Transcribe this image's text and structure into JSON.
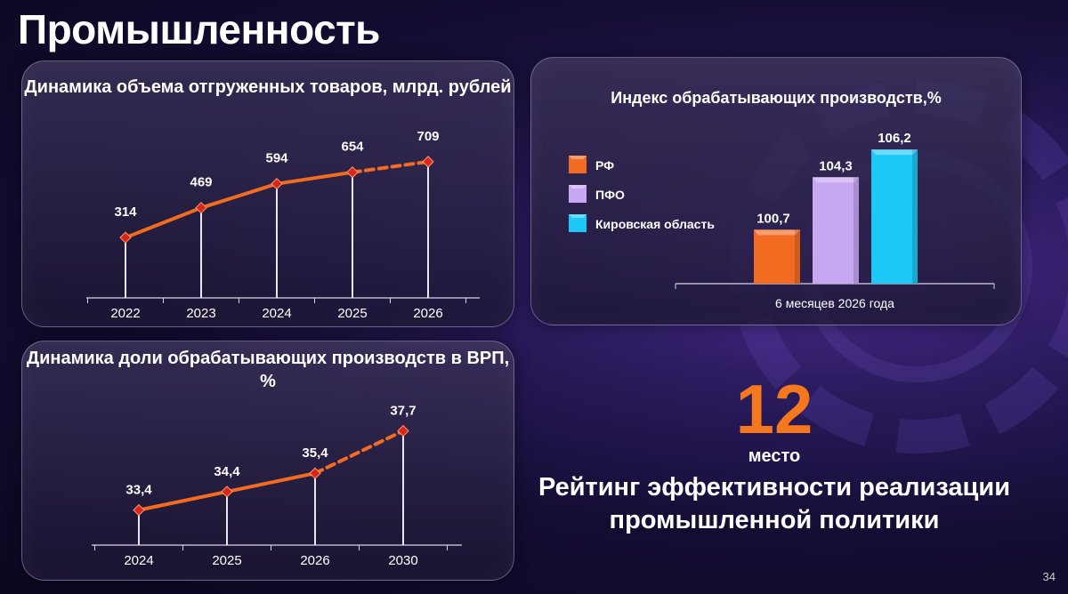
{
  "page": {
    "title": "Промышленность",
    "page_number": "34"
  },
  "colors": {
    "line": "#f26b21",
    "marker": "#d7261e",
    "rf": "#f26b21",
    "pfo": "#c7a6f2",
    "kirov": "#1cc8f5",
    "accent": "#f5781e"
  },
  "rank": {
    "number": "12",
    "word": "место",
    "caption": "Рейтинг эффективности реализации промышленной политики"
  },
  "chart_data": [
    {
      "type": "line",
      "title": "Динамика объема отгруженных товаров, млрд. рублей",
      "categories": [
        "2022",
        "2023",
        "2024",
        "2025",
        "2026"
      ],
      "values": [
        314,
        469,
        594,
        654,
        709
      ],
      "value_labels": [
        "314",
        "469",
        "594",
        "654",
        "709"
      ],
      "forecast_from_index": 3,
      "ylim": [
        0,
        750
      ],
      "grid": false,
      "xlabel": "",
      "ylabel": ""
    },
    {
      "type": "line",
      "title": "Динамика доли обрабатывающих производств в ВРП, %",
      "categories": [
        "2024",
        "2025",
        "2026",
        "2030"
      ],
      "values": [
        33.4,
        34.4,
        35.4,
        37.7
      ],
      "value_labels": [
        "33,4",
        "34,4",
        "35,4",
        "37,7"
      ],
      "forecast_from_index": 2,
      "ylim": [
        31.5,
        38.5
      ],
      "grid": false,
      "xlabel": "",
      "ylabel": ""
    },
    {
      "type": "bar",
      "title": "Индекс обрабатывающих производств,%",
      "categories": [
        "6 месяцев 2026 года"
      ],
      "series": [
        {
          "name": "РФ",
          "values": [
            100.7
          ],
          "label": "100,7",
          "color": "#f26b21"
        },
        {
          "name": "ПФО",
          "values": [
            104.3
          ],
          "label": "104,3",
          "color": "#c7a6f2"
        },
        {
          "name": "Кировская область",
          "values": [
            106.2
          ],
          "label": "106,2",
          "color": "#1cc8f5"
        }
      ],
      "ylim": [
        97,
        107
      ],
      "legend": "left",
      "grid": false
    }
  ]
}
